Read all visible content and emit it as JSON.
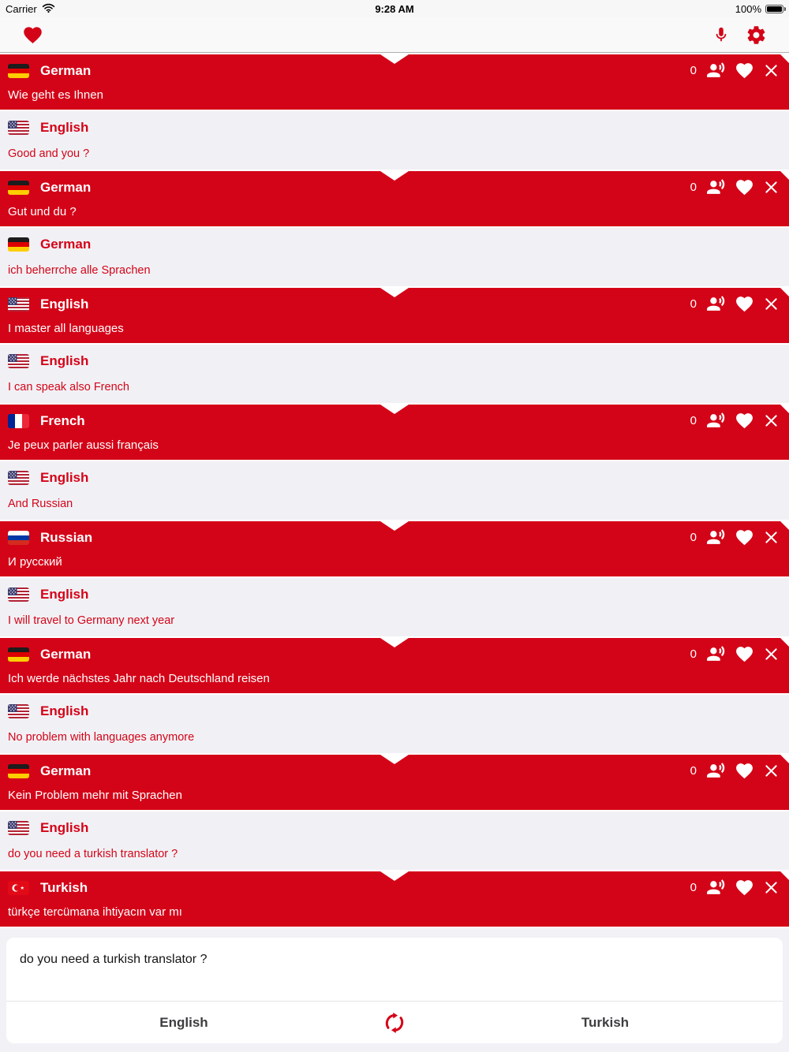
{
  "status_bar": {
    "carrier": "Carrier",
    "time": "9:28 AM",
    "battery_percent": "100%"
  },
  "colors": {
    "accent_red": "#d40418",
    "row_light_bg": "#f1f1f5",
    "page_bg": "#f2f1f6"
  },
  "icons": {
    "status": [
      "wifi-icon",
      "battery-icon"
    ],
    "toolbar": [
      "favorites-heart-icon",
      "microphone-icon",
      "settings-gear-icon"
    ],
    "message_controls": [
      "speak-icon",
      "favorite-heart-icon",
      "close-icon"
    ],
    "composer": [
      "swap-languages-icon"
    ]
  },
  "messages": [
    {
      "style": "translated",
      "language": "German",
      "flag": "germany",
      "text": "Wie geht es Ihnen",
      "play_count": "0"
    },
    {
      "style": "source",
      "language": "English",
      "flag": "usa",
      "text": "Good and you ?"
    },
    {
      "style": "translated",
      "language": "German",
      "flag": "germany",
      "text": "Gut und du ?",
      "play_count": "0"
    },
    {
      "style": "source",
      "language": "German",
      "flag": "germany",
      "text": "ich beherrche alle Sprachen"
    },
    {
      "style": "translated",
      "language": "English",
      "flag": "usa",
      "text": "I master all languages",
      "play_count": "0"
    },
    {
      "style": "source",
      "language": "English",
      "flag": "usa",
      "text": "I can speak also French"
    },
    {
      "style": "translated",
      "language": "French",
      "flag": "france",
      "text": "Je peux parler aussi français",
      "play_count": "0"
    },
    {
      "style": "source",
      "language": "English",
      "flag": "usa",
      "text": "And Russian"
    },
    {
      "style": "translated",
      "language": "Russian",
      "flag": "russia",
      "text": "И русский",
      "play_count": "0"
    },
    {
      "style": "source",
      "language": "English",
      "flag": "usa",
      "text": "I will travel to Germany next year"
    },
    {
      "style": "translated",
      "language": "German",
      "flag": "germany",
      "text": "Ich werde nächstes Jahr nach Deutschland reisen",
      "play_count": "0"
    },
    {
      "style": "source",
      "language": "English",
      "flag": "usa",
      "text": "No problem with languages anymore"
    },
    {
      "style": "translated",
      "language": "German",
      "flag": "germany",
      "text": "Kein Problem mehr mit Sprachen",
      "play_count": "0"
    },
    {
      "style": "source",
      "language": "English",
      "flag": "usa",
      "text": "do you need a turkish translator ?"
    },
    {
      "style": "translated",
      "language": "Turkish",
      "flag": "turkey",
      "text": "türkçe tercümana ihtiyacın var mı",
      "play_count": "0"
    }
  ],
  "composer": {
    "text": "do you need a turkish translator ?"
  },
  "language_bar": {
    "source_label": "English",
    "target_label": "Turkish"
  }
}
